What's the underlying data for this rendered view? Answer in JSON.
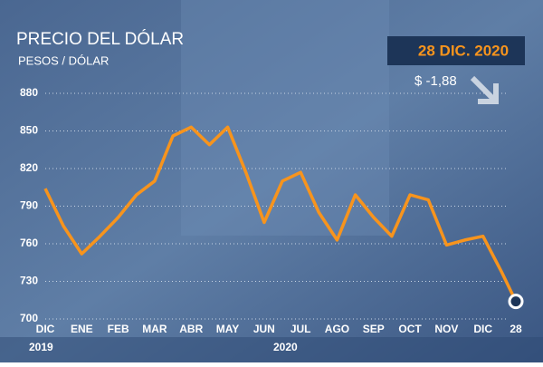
{
  "chart_data": {
    "type": "line",
    "title": "PRECIO DEL DÓLAR",
    "subtitle": "PESOS / DÓLAR",
    "date_label": "28 DIC. 2020",
    "change_label": "$ -1,88",
    "years": [
      "2019",
      "2020"
    ],
    "x": [
      0,
      0.5,
      1,
      1.5,
      2,
      2.5,
      3,
      3.5,
      4,
      4.5,
      5,
      5.5,
      6,
      6.5,
      7,
      7.5,
      8,
      8.5,
      9,
      9.5,
      10,
      10.5,
      11,
      11.5,
      12,
      12.5,
      12.9
    ],
    "values": [
      804,
      774,
      752,
      766,
      781,
      799,
      810,
      846,
      853,
      839,
      853,
      817,
      777,
      810,
      817,
      785,
      763,
      799,
      781,
      766,
      799,
      795,
      759,
      763,
      766,
      738,
      714
    ],
    "color": "#f7941d",
    "xlim": [
      0,
      12.9
    ],
    "xticks": [
      {
        "value": 0,
        "label": "DIC"
      },
      {
        "value": 1,
        "label": "ENE"
      },
      {
        "value": 2,
        "label": "FEB"
      },
      {
        "value": 3,
        "label": "MAR"
      },
      {
        "value": 4,
        "label": "ABR"
      },
      {
        "value": 5,
        "label": "MAY"
      },
      {
        "value": 6,
        "label": "JUN"
      },
      {
        "value": 7,
        "label": "JUL"
      },
      {
        "value": 8,
        "label": "AGO"
      },
      {
        "value": 9,
        "label": "SEP"
      },
      {
        "value": 10,
        "label": "OCT"
      },
      {
        "value": 11,
        "label": "NOV"
      },
      {
        "value": 12,
        "label": "DIC"
      },
      {
        "value": 12.9,
        "label": "28"
      }
    ],
    "ylim": [
      700,
      880
    ],
    "yticks": [
      700,
      730,
      760,
      790,
      820,
      850,
      880
    ],
    "grid": true
  }
}
